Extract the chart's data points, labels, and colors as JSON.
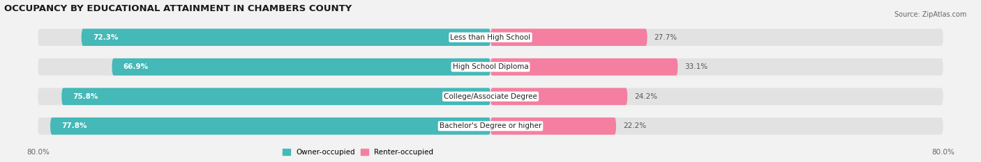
{
  "title": "OCCUPANCY BY EDUCATIONAL ATTAINMENT IN CHAMBERS COUNTY",
  "source": "Source: ZipAtlas.com",
  "categories": [
    "Less than High School",
    "High School Diploma",
    "College/Associate Degree",
    "Bachelor's Degree or higher"
  ],
  "owner_values": [
    72.3,
    66.9,
    75.8,
    77.8
  ],
  "renter_values": [
    27.7,
    33.1,
    24.2,
    22.2
  ],
  "owner_color": "#45b8b8",
  "renter_color": "#f57fa0",
  "background_color": "#f2f2f2",
  "bar_background": "#e2e2e2",
  "label_color": "#333333",
  "axis_max": 100.0,
  "bar_height": 0.58,
  "title_fontsize": 9.5,
  "source_fontsize": 7,
  "label_fontsize": 7.5,
  "value_fontsize": 7.5
}
